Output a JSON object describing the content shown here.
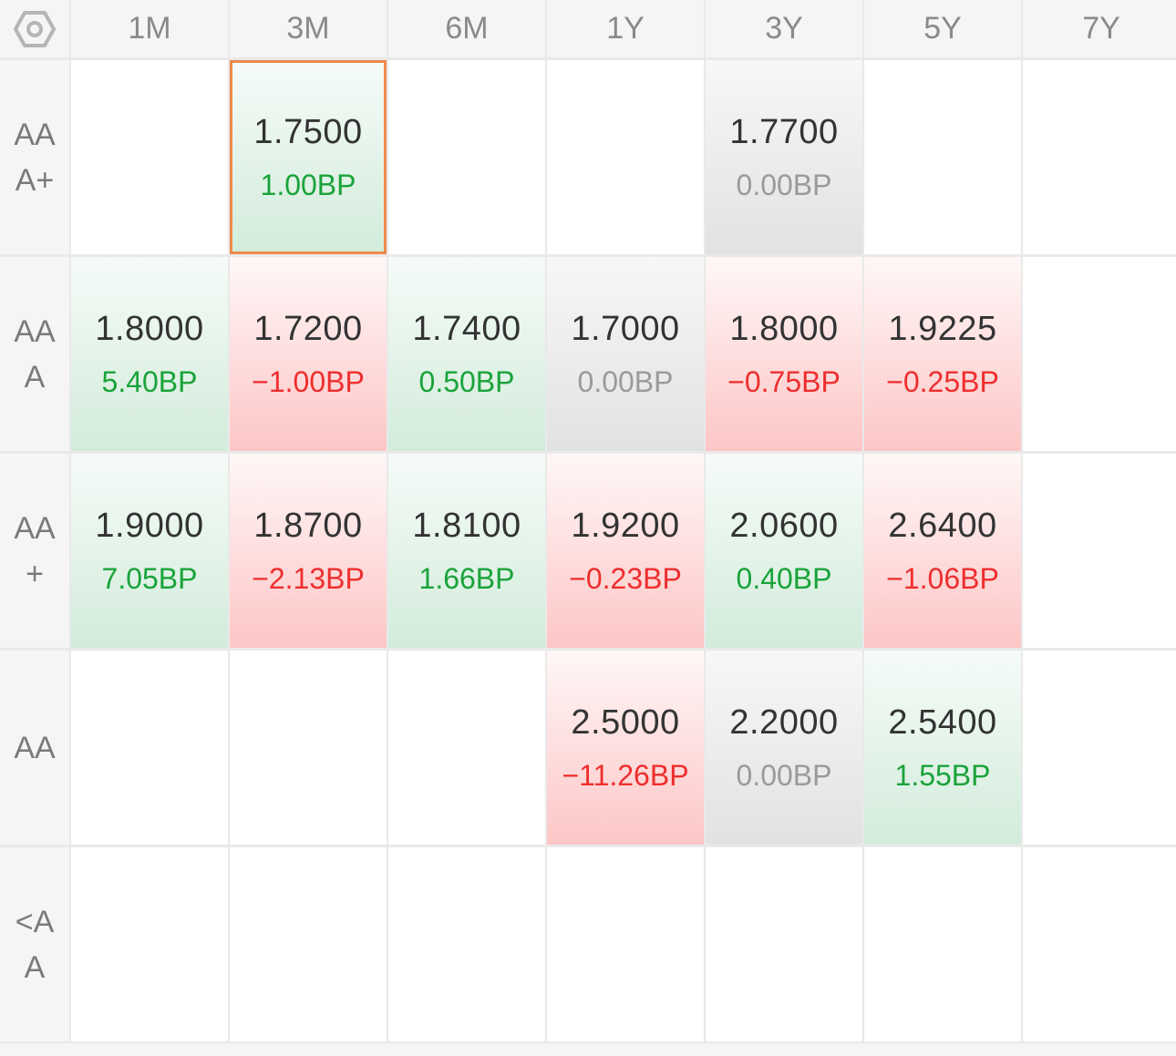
{
  "header": {
    "settings_icon": "hexagon-settings-icon",
    "columns": [
      "1M",
      "3M",
      "6M",
      "1Y",
      "3Y",
      "5Y",
      "7Y"
    ]
  },
  "rows": [
    {
      "label": "AA\nA+",
      "cells": [
        null,
        {
          "value": "1.7500",
          "change": "1.00BP",
          "trend": "up",
          "selected": true
        },
        null,
        null,
        {
          "value": "1.7700",
          "change": "0.00BP",
          "trend": "flat"
        },
        null,
        null
      ]
    },
    {
      "label": "AA\nA",
      "cells": [
        {
          "value": "1.8000",
          "change": "5.40BP",
          "trend": "up"
        },
        {
          "value": "1.7200",
          "change": "−1.00BP",
          "trend": "down"
        },
        {
          "value": "1.7400",
          "change": "0.50BP",
          "trend": "up"
        },
        {
          "value": "1.7000",
          "change": "0.00BP",
          "trend": "flat"
        },
        {
          "value": "1.8000",
          "change": "−0.75BP",
          "trend": "down"
        },
        {
          "value": "1.9225",
          "change": "−0.25BP",
          "trend": "down"
        },
        null
      ]
    },
    {
      "label": "AA\n+",
      "cells": [
        {
          "value": "1.9000",
          "change": "7.05BP",
          "trend": "up"
        },
        {
          "value": "1.8700",
          "change": "−2.13BP",
          "trend": "down"
        },
        {
          "value": "1.8100",
          "change": "1.66BP",
          "trend": "up"
        },
        {
          "value": "1.9200",
          "change": "−0.23BP",
          "trend": "down"
        },
        {
          "value": "2.0600",
          "change": "0.40BP",
          "trend": "up"
        },
        {
          "value": "2.6400",
          "change": "−1.06BP",
          "trend": "down"
        },
        null
      ]
    },
    {
      "label": "AA",
      "cells": [
        null,
        null,
        null,
        {
          "value": "2.5000",
          "change": "−11.26BP",
          "trend": "down"
        },
        {
          "value": "2.2000",
          "change": "0.00BP",
          "trend": "flat"
        },
        {
          "value": "2.5400",
          "change": "1.55BP",
          "trend": "up"
        },
        null
      ]
    },
    {
      "label": "<A\nA",
      "cells": [
        null,
        null,
        null,
        null,
        null,
        null,
        null
      ]
    }
  ],
  "colors": {
    "up": "#1aa33a",
    "down": "#ee2e2e",
    "flat": "#9a9a9a",
    "selected_border": "#f08a4b"
  }
}
